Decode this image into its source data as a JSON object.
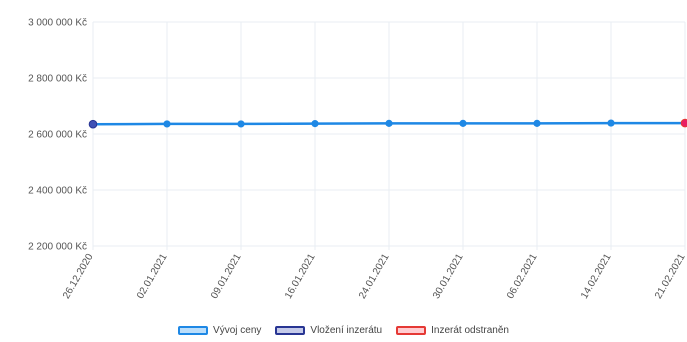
{
  "chart_data": {
    "type": "line",
    "categories": [
      "26.12.2020",
      "02.01.2021",
      "09.01.2021",
      "16.01.2021",
      "24.01.2021",
      "30.01.2021",
      "06.02.2021",
      "14.02.2021",
      "21.02.2021"
    ],
    "series": [
      {
        "name": "Vývoj ceny",
        "values": [
          2635000,
          2636000,
          2636000,
          2637000,
          2638000,
          2638000,
          2638000,
          2639000,
          2639000
        ],
        "color": "#1e88e5"
      }
    ],
    "markers": [
      {
        "name": "Vložení inzerátu",
        "index": 0,
        "color": "#283593",
        "fill": "#3f51b5"
      },
      {
        "name": "Inzerát odstraněn",
        "index": 8,
        "color": "#e53935",
        "fill": "#e91e63"
      }
    ],
    "ylim": [
      2200000,
      3000000
    ],
    "yticks": [
      {
        "value": 3000000,
        "label": "3 000 000 Kč"
      },
      {
        "value": 2800000,
        "label": "2 800 000 Kč"
      },
      {
        "value": 2600000,
        "label": "2 600 000 Kč"
      },
      {
        "value": 2400000,
        "label": "2 400 000 Kč"
      },
      {
        "value": 2200000,
        "label": "2 200 000 Kč"
      }
    ],
    "grid": true,
    "legend_position": "bottom",
    "title": "",
    "xlabel": "",
    "ylabel": ""
  },
  "legend": {
    "items": [
      {
        "label": "Vývoj ceny",
        "border": "#1e88e5",
        "fill": "#bbdefb"
      },
      {
        "label": "Vložení inzerátu",
        "border": "#283593",
        "fill": "#c5cae9"
      },
      {
        "label": "Inzerát odstraněn",
        "border": "#e53935",
        "fill": "#ffcdd2"
      }
    ]
  }
}
